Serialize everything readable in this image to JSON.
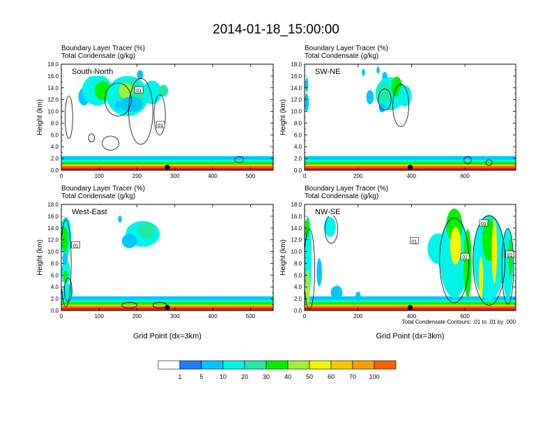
{
  "title": "2014-01-18_15:00:00",
  "colors": {
    "scale": [
      "#ffffff",
      "#1f7bf4",
      "#00c7ff",
      "#00f5e9",
      "#1fe9a3",
      "#00f000",
      "#9cf03c",
      "#f5f500",
      "#f5c800",
      "#f5a000",
      "#f56400",
      "#f01414"
    ]
  },
  "colorbar": {
    "labels": [
      "1",
      "5",
      "10",
      "20",
      "30",
      "40",
      "50",
      "60",
      "70",
      "100"
    ]
  },
  "footnote": "Total Condensate Contours: .01 to .01 by .000",
  "chart_data": [
    {
      "type": "heatmap",
      "panel_label": "South-North",
      "title_lines": [
        "Boundary Layer Tracer   (%)",
        "Total Condensate   (g/kg)"
      ],
      "ylabel": "Height (km)",
      "xlabel": "",
      "xlim": [
        0,
        560
      ],
      "ylim": [
        0,
        18
      ],
      "xticks": [
        {
          "v": 0,
          "t": "0"
        },
        {
          "v": 100,
          "t": "100"
        },
        {
          "v": 200,
          "t": "200"
        },
        {
          "v": 300,
          "t": "300"
        },
        {
          "v": 400,
          "t": "400"
        },
        {
          "v": 500,
          "t": "500"
        }
      ],
      "yticks": [
        {
          "v": 0,
          "t": "0.0"
        },
        {
          "v": 2,
          "t": "2.0"
        },
        {
          "v": 4,
          "t": "4.0"
        },
        {
          "v": 6,
          "t": "6.0"
        },
        {
          "v": 8,
          "t": "8.0"
        },
        {
          "v": 10,
          "t": "10.0"
        },
        {
          "v": 12,
          "t": "12.0"
        },
        {
          "v": 14,
          "t": "14.0"
        },
        {
          "v": 16,
          "t": "16.0"
        },
        {
          "v": 18,
          "t": "18.0"
        }
      ],
      "marker_x": 280,
      "contour_labels": [
        {
          "x": 205,
          "y": 13.6,
          "t": "01"
        },
        {
          "x": 262,
          "y": 7.7,
          "t": "01"
        }
      ],
      "blobs": [
        {
          "x": 60,
          "y": 12.5,
          "rx": 15,
          "ry": 1.5,
          "lvl": 2
        },
        {
          "x": 95,
          "y": 13.6,
          "rx": 40,
          "ry": 2.6,
          "lvl": 3
        },
        {
          "x": 110,
          "y": 13.5,
          "rx": 22,
          "ry": 1.6,
          "lvl": 5
        },
        {
          "x": 175,
          "y": 12.6,
          "rx": 55,
          "ry": 3.4,
          "lvl": 3
        },
        {
          "x": 185,
          "y": 13.0,
          "rx": 35,
          "ry": 2.2,
          "lvl": 4
        },
        {
          "x": 170,
          "y": 13.5,
          "rx": 18,
          "ry": 1.4,
          "lvl": 6
        },
        {
          "x": 185,
          "y": 11.2,
          "rx": 30,
          "ry": 1.3,
          "lvl": 2
        },
        {
          "x": 240,
          "y": 13.2,
          "rx": 25,
          "ry": 2.0,
          "lvl": 3
        },
        {
          "x": 270,
          "y": 13.5,
          "rx": 12,
          "ry": 1.0,
          "lvl": 4
        },
        {
          "x": 208,
          "y": 16.2,
          "rx": 8,
          "ry": 0.8,
          "lvl": 2
        },
        {
          "x": 150,
          "y": 11.0,
          "rx": 8,
          "ry": 0.8,
          "lvl": 2
        }
      ],
      "contours": [
        {
          "x": 20,
          "y": 9.0,
          "rx": 10,
          "ry": 3.6
        },
        {
          "x": 80,
          "y": 5.5,
          "rx": 8,
          "ry": 0.7
        },
        {
          "x": 130,
          "y": 4.6,
          "rx": 22,
          "ry": 1.2
        },
        {
          "x": 210,
          "y": 10.0,
          "rx": 32,
          "ry": 5.6
        },
        {
          "x": 150,
          "y": 12.0,
          "rx": 35,
          "ry": 2.8
        },
        {
          "x": 260,
          "y": 9.4,
          "rx": 15,
          "ry": 3.4
        },
        {
          "x": 470,
          "y": 1.8,
          "rx": 12,
          "ry": 0.5
        }
      ]
    },
    {
      "type": "heatmap",
      "panel_label": "SW-NE",
      "title_lines": [
        "Boundary Layer Tracer   (%)",
        "Total Condensate   (g/kg)"
      ],
      "ylabel": "Height (km)",
      "xlabel": "",
      "xlim": [
        0,
        790
      ],
      "ylim": [
        0,
        18
      ],
      "xticks": [
        {
          "v": 0,
          "t": "0"
        },
        {
          "v": 200,
          "t": "200"
        },
        {
          "v": 400,
          "t": "400"
        },
        {
          "v": 600,
          "t": "600"
        }
      ],
      "yticks": [
        {
          "v": 0,
          "t": "0.0"
        },
        {
          "v": 2,
          "t": "2.0"
        },
        {
          "v": 4,
          "t": "4.0"
        },
        {
          "v": 6,
          "t": "6.0"
        },
        {
          "v": 8,
          "t": "8.0"
        },
        {
          "v": 10,
          "t": "10.0"
        },
        {
          "v": 12,
          "t": "12.0"
        },
        {
          "v": 14,
          "t": "14.0"
        },
        {
          "v": 16,
          "t": "16.0"
        },
        {
          "v": 18,
          "t": "18.0"
        }
      ],
      "marker_x": 395,
      "contour_labels": [],
      "blobs": [
        {
          "x": 8,
          "y": 14.5,
          "rx": 6,
          "ry": 1.2,
          "lvl": 2
        },
        {
          "x": 8,
          "y": 11.5,
          "rx": 8,
          "ry": 1.5,
          "lvl": 2
        },
        {
          "x": 220,
          "y": 16.6,
          "rx": 6,
          "ry": 0.6,
          "lvl": 2
        },
        {
          "x": 275,
          "y": 17.0,
          "rx": 6,
          "ry": 0.6,
          "lvl": 2
        },
        {
          "x": 300,
          "y": 15.8,
          "rx": 10,
          "ry": 0.9,
          "lvl": 2
        },
        {
          "x": 320,
          "y": 13.0,
          "rx": 55,
          "ry": 2.8,
          "lvl": 3
        },
        {
          "x": 300,
          "y": 13.2,
          "rx": 25,
          "ry": 1.6,
          "lvl": 4
        },
        {
          "x": 345,
          "y": 14.2,
          "rx": 20,
          "ry": 1.7,
          "lvl": 5
        },
        {
          "x": 375,
          "y": 12.6,
          "rx": 25,
          "ry": 1.8,
          "lvl": 3
        },
        {
          "x": 245,
          "y": 12.4,
          "rx": 14,
          "ry": 1.2,
          "lvl": 2
        },
        {
          "x": 290,
          "y": 10.6,
          "rx": 12,
          "ry": 0.8,
          "lvl": 2
        }
      ],
      "contours": [
        {
          "x": 360,
          "y": 11.0,
          "rx": 30,
          "ry": 3.6
        },
        {
          "x": 300,
          "y": 12.0,
          "rx": 24,
          "ry": 1.8
        },
        {
          "x": 610,
          "y": 1.7,
          "rx": 14,
          "ry": 0.6
        },
        {
          "x": 690,
          "y": 1.3,
          "rx": 12,
          "ry": 0.5
        }
      ]
    },
    {
      "type": "heatmap",
      "panel_label": "West-East",
      "title_lines": [
        "Boundary Layer Tracer   (%)",
        "Total Condensate   (g/kg)"
      ],
      "ylabel": "Height (km)",
      "xlabel": "Grid Point (dx=3km)",
      "xlim": [
        0,
        560
      ],
      "ylim": [
        0,
        18
      ],
      "xticks": [
        {
          "v": 0,
          "t": "0"
        },
        {
          "v": 100,
          "t": "100"
        },
        {
          "v": 200,
          "t": "200"
        },
        {
          "v": 300,
          "t": "300"
        },
        {
          "v": 400,
          "t": "400"
        },
        {
          "v": 500,
          "t": "500"
        }
      ],
      "yticks": [
        {
          "v": 0,
          "t": "0.0"
        },
        {
          "v": 2,
          "t": "2.0"
        },
        {
          "v": 4,
          "t": "4.0"
        },
        {
          "v": 6,
          "t": "6.0"
        },
        {
          "v": 8,
          "t": "8.0"
        },
        {
          "v": 10,
          "t": "10.0"
        },
        {
          "v": 12,
          "t": "12.0"
        },
        {
          "v": 14,
          "t": "14.0"
        },
        {
          "v": 16,
          "t": "16.0"
        },
        {
          "v": 18,
          "t": "18.0"
        }
      ],
      "marker_x": 280,
      "contour_labels": [
        {
          "x": 38,
          "y": 11.1,
          "t": "01"
        }
      ],
      "blobs": [
        {
          "x": 12,
          "y": 12.5,
          "rx": 14,
          "ry": 3.4,
          "lvl": 3
        },
        {
          "x": 10,
          "y": 12.0,
          "rx": 8,
          "ry": 2.2,
          "lvl": 5
        },
        {
          "x": 12,
          "y": 6.5,
          "rx": 12,
          "ry": 2.0,
          "lvl": 3
        },
        {
          "x": 16,
          "y": 3.0,
          "rx": 14,
          "ry": 1.6,
          "lvl": 3
        },
        {
          "x": 10,
          "y": 8.8,
          "rx": 7,
          "ry": 1.0,
          "lvl": 2
        },
        {
          "x": 12,
          "y": 5.8,
          "rx": 6,
          "ry": 1.0,
          "lvl": 5
        },
        {
          "x": 215,
          "y": 13.0,
          "rx": 45,
          "ry": 2.2,
          "lvl": 3
        },
        {
          "x": 225,
          "y": 13.6,
          "rx": 22,
          "ry": 1.3,
          "lvl": 4
        },
        {
          "x": 180,
          "y": 11.8,
          "rx": 20,
          "ry": 1.2,
          "lvl": 2
        },
        {
          "x": 155,
          "y": 15.5,
          "rx": 5,
          "ry": 0.6,
          "lvl": 2
        }
      ],
      "contours": [
        {
          "x": 12,
          "y": 8.0,
          "rx": 14,
          "ry": 7.4
        },
        {
          "x": 18,
          "y": 3.5,
          "rx": 10,
          "ry": 2.0
        },
        {
          "x": 180,
          "y": 0.9,
          "rx": 20,
          "ry": 0.5
        },
        {
          "x": 260,
          "y": 0.9,
          "rx": 18,
          "ry": 0.5
        }
      ]
    },
    {
      "type": "heatmap",
      "panel_label": "NW-SE",
      "title_lines": [
        "Boundary Layer Tracer   (%)",
        "Total Condensate   (g/kg)"
      ],
      "ylabel": "Height (km)",
      "xlabel": "Grid Point (dx=3km)",
      "xlim": [
        0,
        790
      ],
      "ylim": [
        0,
        18
      ],
      "xticks": [
        {
          "v": 0,
          "t": "0"
        },
        {
          "v": 200,
          "t": "200"
        },
        {
          "v": 400,
          "t": "400"
        },
        {
          "v": 600,
          "t": "600"
        }
      ],
      "yticks": [
        {
          "v": 0,
          "t": "0.0"
        },
        {
          "v": 2,
          "t": "2.0"
        },
        {
          "v": 4,
          "t": "4.0"
        },
        {
          "v": 6,
          "t": "6.0"
        },
        {
          "v": 8,
          "t": "8.0"
        },
        {
          "v": 10,
          "t": "10.0"
        },
        {
          "v": 12,
          "t": "12.0"
        },
        {
          "v": 14,
          "t": "14.0"
        },
        {
          "v": 16,
          "t": "16.0"
        },
        {
          "v": 18,
          "t": "18.0"
        }
      ],
      "marker_x": 395,
      "contour_labels": [
        {
          "x": 410,
          "y": 11.8,
          "t": "01"
        },
        {
          "x": 600,
          "y": 9.1,
          "t": "01"
        },
        {
          "x": 670,
          "y": 14.8,
          "t": "01"
        },
        {
          "x": 768,
          "y": 9.5,
          "t": "01"
        }
      ],
      "blobs": [
        {
          "x": 12,
          "y": 9.0,
          "rx": 14,
          "ry": 7.0,
          "lvl": 3
        },
        {
          "x": 10,
          "y": 14.0,
          "rx": 8,
          "ry": 1.6,
          "lvl": 5
        },
        {
          "x": 12,
          "y": 4.0,
          "rx": 8,
          "ry": 3.0,
          "lvl": 6
        },
        {
          "x": 55,
          "y": 6.5,
          "rx": 10,
          "ry": 2.4,
          "lvl": 2
        },
        {
          "x": 95,
          "y": 14.2,
          "rx": 22,
          "ry": 1.7,
          "lvl": 3
        },
        {
          "x": 120,
          "y": 3.0,
          "rx": 22,
          "ry": 1.2,
          "lvl": 2
        },
        {
          "x": 200,
          "y": 2.4,
          "rx": 10,
          "ry": 0.8,
          "lvl": 2
        },
        {
          "x": 500,
          "y": 10.5,
          "rx": 40,
          "ry": 2.6,
          "lvl": 3
        },
        {
          "x": 560,
          "y": 9.0,
          "rx": 55,
          "ry": 6.8,
          "lvl": 3
        },
        {
          "x": 560,
          "y": 14.5,
          "rx": 30,
          "ry": 2.8,
          "lvl": 5
        },
        {
          "x": 565,
          "y": 11.0,
          "rx": 20,
          "ry": 3.2,
          "lvl": 7
        },
        {
          "x": 610,
          "y": 8.0,
          "rx": 15,
          "ry": 5.8,
          "lvl": 5
        },
        {
          "x": 690,
          "y": 9.0,
          "rx": 60,
          "ry": 7.2,
          "lvl": 3
        },
        {
          "x": 690,
          "y": 12.0,
          "rx": 25,
          "ry": 3.6,
          "lvl": 5
        },
        {
          "x": 710,
          "y": 10.0,
          "rx": 10,
          "ry": 5.4,
          "lvl": 7
        },
        {
          "x": 660,
          "y": 5.5,
          "rx": 8,
          "ry": 3.6,
          "lvl": 7
        },
        {
          "x": 760,
          "y": 8.0,
          "rx": 20,
          "ry": 6.0,
          "lvl": 3
        },
        {
          "x": 770,
          "y": 9.0,
          "rx": 8,
          "ry": 3.2,
          "lvl": 5
        }
      ],
      "contours": [
        {
          "x": 18,
          "y": 7.0,
          "rx": 20,
          "ry": 6.8
        },
        {
          "x": 100,
          "y": 13.8,
          "rx": 24,
          "ry": 2.4
        },
        {
          "x": 560,
          "y": 8.5,
          "rx": 55,
          "ry": 7.2
        },
        {
          "x": 690,
          "y": 8.5,
          "rx": 60,
          "ry": 7.6
        },
        {
          "x": 760,
          "y": 7.5,
          "rx": 22,
          "ry": 6.4
        }
      ]
    }
  ]
}
